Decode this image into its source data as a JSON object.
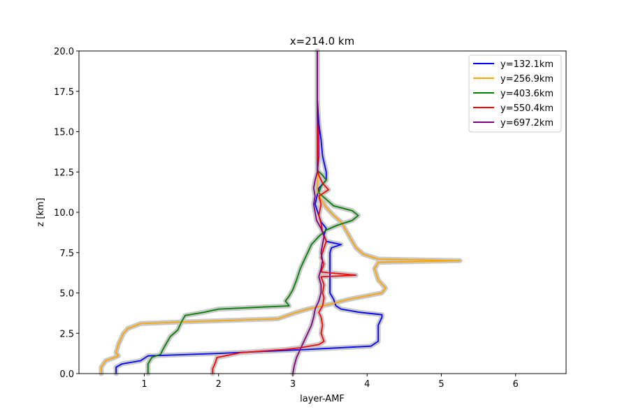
{
  "chart_data": {
    "type": "line",
    "title": "x=214.0 km",
    "xlabel": "layer-AMF",
    "ylabel": "z [km]",
    "xlim": [
      0.12,
      6.68
    ],
    "ylim": [
      0,
      20
    ],
    "xticks": [
      1,
      2,
      3,
      4,
      5,
      6
    ],
    "yticks": [
      0.0,
      2.5,
      5.0,
      7.5,
      10.0,
      12.5,
      15.0,
      17.5,
      20.0
    ],
    "grid": false,
    "legend_position": "top-right",
    "uncertainty_band_color": "#c8c8c8",
    "series": [
      {
        "name": "y=132.1km",
        "color": "#0000ff",
        "points": [
          [
            0.62,
            0.0
          ],
          [
            0.62,
            0.4
          ],
          [
            0.7,
            0.6
          ],
          [
            0.95,
            0.8
          ],
          [
            1.05,
            1.1
          ],
          [
            2.0,
            1.25
          ],
          [
            3.2,
            1.5
          ],
          [
            4.05,
            1.7
          ],
          [
            4.15,
            2.0
          ],
          [
            4.15,
            3.0
          ],
          [
            4.2,
            3.5
          ],
          [
            4.2,
            3.65
          ],
          [
            3.9,
            3.8
          ],
          [
            3.65,
            4.0
          ],
          [
            3.58,
            4.2
          ],
          [
            3.55,
            4.6
          ],
          [
            3.5,
            5.0
          ],
          [
            3.5,
            6.5
          ],
          [
            3.5,
            7.5
          ],
          [
            3.52,
            7.8
          ],
          [
            3.65,
            8.0
          ],
          [
            3.45,
            8.2
          ],
          [
            3.42,
            8.6
          ],
          [
            3.45,
            9.0
          ],
          [
            3.38,
            9.4
          ],
          [
            3.35,
            9.8
          ],
          [
            3.3,
            10.5
          ],
          [
            3.35,
            11.5
          ],
          [
            3.45,
            12.0
          ],
          [
            3.45,
            12.5
          ],
          [
            3.4,
            13.5
          ],
          [
            3.38,
            14.5
          ],
          [
            3.35,
            15.5
          ],
          [
            3.33,
            17.0
          ],
          [
            3.33,
            20.0
          ]
        ]
      },
      {
        "name": "y=256.9km",
        "color": "#ffa500",
        "points": [
          [
            0.42,
            0.0
          ],
          [
            0.42,
            0.4
          ],
          [
            0.48,
            0.8
          ],
          [
            0.6,
            1.0
          ],
          [
            0.65,
            1.1
          ],
          [
            0.62,
            1.3
          ],
          [
            0.65,
            1.8
          ],
          [
            0.7,
            2.3
          ],
          [
            0.72,
            2.5
          ],
          [
            0.78,
            2.8
          ],
          [
            0.95,
            3.1
          ],
          [
            1.5,
            3.2
          ],
          [
            2.8,
            3.4
          ],
          [
            3.05,
            3.8
          ],
          [
            3.2,
            4.0
          ],
          [
            3.5,
            4.3
          ],
          [
            3.75,
            4.6
          ],
          [
            4.2,
            5.0
          ],
          [
            4.25,
            5.3
          ],
          [
            4.15,
            5.8
          ],
          [
            4.1,
            6.5
          ],
          [
            4.15,
            6.9
          ],
          [
            5.25,
            7.0
          ],
          [
            4.15,
            7.1
          ],
          [
            3.95,
            7.4
          ],
          [
            3.85,
            7.8
          ],
          [
            3.75,
            8.6
          ],
          [
            3.7,
            9.0
          ],
          [
            3.65,
            9.4
          ],
          [
            3.55,
            9.8
          ],
          [
            3.45,
            10.3
          ],
          [
            3.38,
            10.8
          ],
          [
            3.33,
            11.3
          ],
          [
            3.33,
            12.5
          ],
          [
            3.33,
            15.0
          ],
          [
            3.33,
            20.0
          ]
        ]
      },
      {
        "name": "y=403.6km",
        "color": "#008000",
        "points": [
          [
            1.05,
            0.0
          ],
          [
            1.05,
            0.6
          ],
          [
            1.1,
            1.0
          ],
          [
            1.22,
            1.2
          ],
          [
            1.25,
            1.5
          ],
          [
            1.3,
            1.9
          ],
          [
            1.35,
            2.3
          ],
          [
            1.4,
            2.5
          ],
          [
            1.45,
            2.7
          ],
          [
            1.5,
            3.2
          ],
          [
            1.55,
            3.6
          ],
          [
            1.8,
            3.8
          ],
          [
            2.0,
            4.0
          ],
          [
            2.95,
            4.2
          ],
          [
            2.9,
            4.5
          ],
          [
            2.95,
            4.8
          ],
          [
            3.0,
            5.2
          ],
          [
            3.05,
            5.8
          ],
          [
            3.1,
            6.5
          ],
          [
            3.15,
            7.0
          ],
          [
            3.2,
            7.5
          ],
          [
            3.25,
            8.0
          ],
          [
            3.35,
            8.5
          ],
          [
            3.45,
            8.9
          ],
          [
            3.6,
            9.2
          ],
          [
            3.8,
            9.5
          ],
          [
            3.88,
            9.8
          ],
          [
            3.8,
            10.1
          ],
          [
            3.55,
            10.4
          ],
          [
            3.45,
            10.8
          ],
          [
            3.35,
            11.2
          ],
          [
            3.38,
            11.6
          ],
          [
            3.45,
            12.0
          ],
          [
            3.4,
            12.3
          ],
          [
            3.33,
            12.6
          ],
          [
            3.33,
            15.0
          ],
          [
            3.33,
            20.0
          ]
        ]
      },
      {
        "name": "y=550.4km",
        "color": "#ff0000",
        "points": [
          [
            1.92,
            0.0
          ],
          [
            1.92,
            0.3
          ],
          [
            1.95,
            0.6
          ],
          [
            1.98,
            1.0
          ],
          [
            2.3,
            1.3
          ],
          [
            2.9,
            1.5
          ],
          [
            3.1,
            1.6
          ],
          [
            3.35,
            1.8
          ],
          [
            3.42,
            2.0
          ],
          [
            3.38,
            2.5
          ],
          [
            3.4,
            3.0
          ],
          [
            3.38,
            3.5
          ],
          [
            3.35,
            3.8
          ],
          [
            3.4,
            4.2
          ],
          [
            3.42,
            4.7
          ],
          [
            3.4,
            5.0
          ],
          [
            3.42,
            5.5
          ],
          [
            3.38,
            6.0
          ],
          [
            3.85,
            6.1
          ],
          [
            3.38,
            6.3
          ],
          [
            3.42,
            6.8
          ],
          [
            3.38,
            7.2
          ],
          [
            3.42,
            7.8
          ],
          [
            3.45,
            8.2
          ],
          [
            3.4,
            8.8
          ],
          [
            3.38,
            9.3
          ],
          [
            3.35,
            9.8
          ],
          [
            3.38,
            10.5
          ],
          [
            3.35,
            11.0
          ],
          [
            3.48,
            11.4
          ],
          [
            3.4,
            11.8
          ],
          [
            3.35,
            12.3
          ],
          [
            3.33,
            12.8
          ],
          [
            3.33,
            15.0
          ],
          [
            3.33,
            20.0
          ]
        ]
      },
      {
        "name": "y=697.2km",
        "color": "#800080",
        "points": [
          [
            3.0,
            0.0
          ],
          [
            3.02,
            0.5
          ],
          [
            3.05,
            1.0
          ],
          [
            3.1,
            1.5
          ],
          [
            3.15,
            2.0
          ],
          [
            3.2,
            2.5
          ],
          [
            3.25,
            3.0
          ],
          [
            3.28,
            3.5
          ],
          [
            3.3,
            4.0
          ],
          [
            3.35,
            4.5
          ],
          [
            3.38,
            5.0
          ],
          [
            3.38,
            5.5
          ],
          [
            3.35,
            6.0
          ],
          [
            3.38,
            6.5
          ],
          [
            3.4,
            7.0
          ],
          [
            3.38,
            7.5
          ],
          [
            3.4,
            8.0
          ],
          [
            3.42,
            8.5
          ],
          [
            3.38,
            9.0
          ],
          [
            3.32,
            9.5
          ],
          [
            3.3,
            10.0
          ],
          [
            3.28,
            10.5
          ],
          [
            3.3,
            11.0
          ],
          [
            3.28,
            11.5
          ],
          [
            3.3,
            12.0
          ],
          [
            3.33,
            12.5
          ],
          [
            3.35,
            13.5
          ],
          [
            3.35,
            15.0
          ],
          [
            3.33,
            16.0
          ],
          [
            3.33,
            20.0
          ]
        ]
      }
    ]
  }
}
